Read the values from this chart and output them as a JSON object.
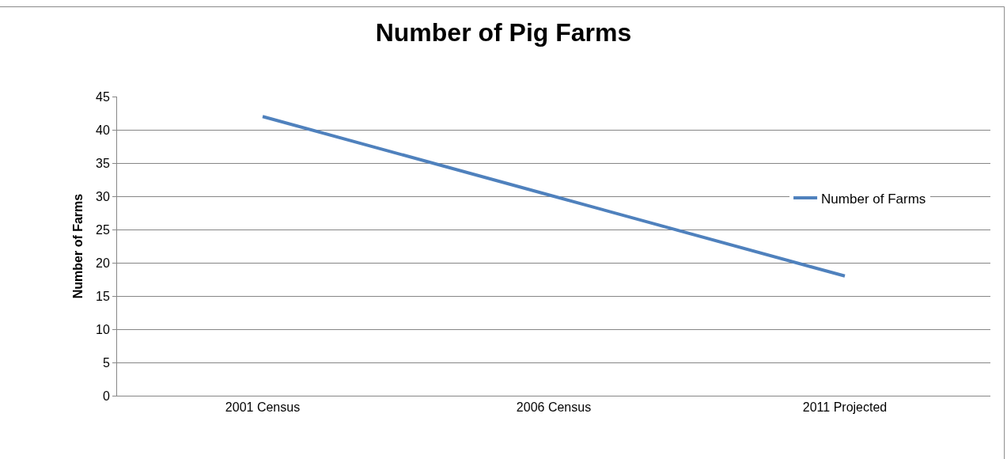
{
  "chart_data": {
    "type": "line",
    "title": "Number of Pig Farms",
    "ylabel": "Number of Farms",
    "categories": [
      "2001 Census",
      "2006 Census",
      "2011 Projected"
    ],
    "series": [
      {
        "name": "Number of Farms",
        "color": "#4f81bd",
        "values": [
          42,
          30,
          18
        ]
      }
    ],
    "ylim": [
      0,
      45
    ],
    "yticks": [
      0,
      5,
      10,
      15,
      20,
      25,
      30,
      35,
      40,
      45
    ],
    "grid": "y",
    "legend": "right",
    "marker": "none",
    "line_style": "solid"
  }
}
